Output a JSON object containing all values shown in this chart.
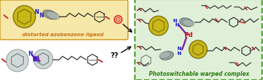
{
  "fig_width": 3.78,
  "fig_height": 1.16,
  "dpi": 100,
  "bg_color": "#ffffff",
  "left_box_color": "#f5e8a8",
  "left_box_edge": "#d4a030",
  "right_box_color": "#e0f0d8",
  "right_box_edge": "#4a9a2a",
  "text_left_label": "distorted azobenzene ligand",
  "text_left_color": "#c87010",
  "text_right_label": "Photoswitchable warped complex",
  "text_right_color": "#2a7a10",
  "pd_label": "Pd",
  "pd_color": "#cc1010",
  "yellow_fill": "#c8b818",
  "yellow_edge": "#807010",
  "gray_fill_dark": "#7a8a88",
  "gray_fill_light": "#b8c4c0",
  "n_color": "#1818cc",
  "red_color": "#cc1818",
  "purple_color": "#8020a0",
  "dark_color": "#1a1a1a",
  "question_marks": "??",
  "arrow_color": "#111111",
  "chain_color": "#222222",
  "target_red": "#dd2020"
}
